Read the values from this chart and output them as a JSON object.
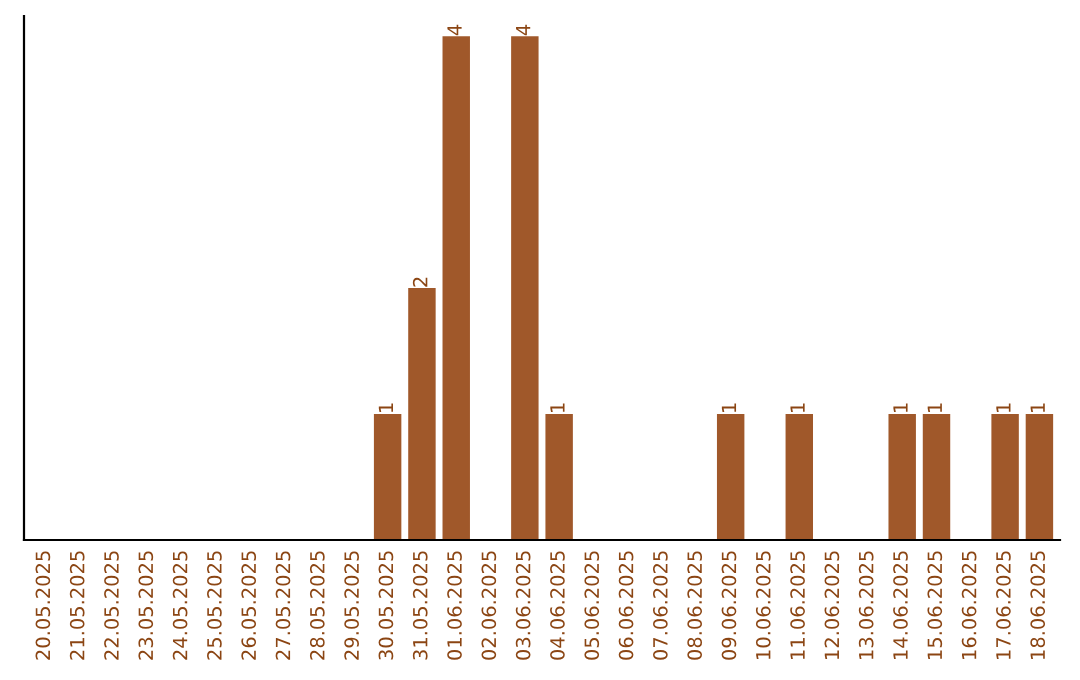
{
  "chart_data": {
    "type": "bar",
    "categories": [
      "20.05.2025",
      "21.05.2025",
      "22.05.2025",
      "23.05.2025",
      "24.05.2025",
      "25.05.2025",
      "26.05.2025",
      "27.05.2025",
      "28.05.2025",
      "29.05.2025",
      "30.05.2025",
      "31.05.2025",
      "01.06.2025",
      "02.06.2025",
      "03.06.2025",
      "04.06.2025",
      "05.06.2025",
      "06.06.2025",
      "07.06.2025",
      "08.06.2025",
      "09.06.2025",
      "10.06.2025",
      "11.06.2025",
      "12.06.2025",
      "13.06.2025",
      "14.06.2025",
      "15.06.2025",
      "16.06.2025",
      "17.06.2025",
      "18.06.2025"
    ],
    "values": [
      0,
      0,
      0,
      0,
      0,
      0,
      0,
      0,
      0,
      0,
      1,
      2,
      4,
      0,
      4,
      1,
      0,
      0,
      0,
      0,
      1,
      0,
      1,
      0,
      0,
      1,
      1,
      0,
      1,
      1
    ],
    "value_labels": [
      null,
      null,
      null,
      null,
      null,
      null,
      null,
      null,
      null,
      null,
      "1",
      "2",
      "4",
      null,
      "4",
      "1",
      null,
      null,
      null,
      null,
      "1",
      null,
      "1",
      null,
      null,
      "1",
      "1",
      null,
      "1",
      "1"
    ],
    "color": "#a0582a",
    "tick_labels": "x",
    "grid": false,
    "legend": false
  }
}
